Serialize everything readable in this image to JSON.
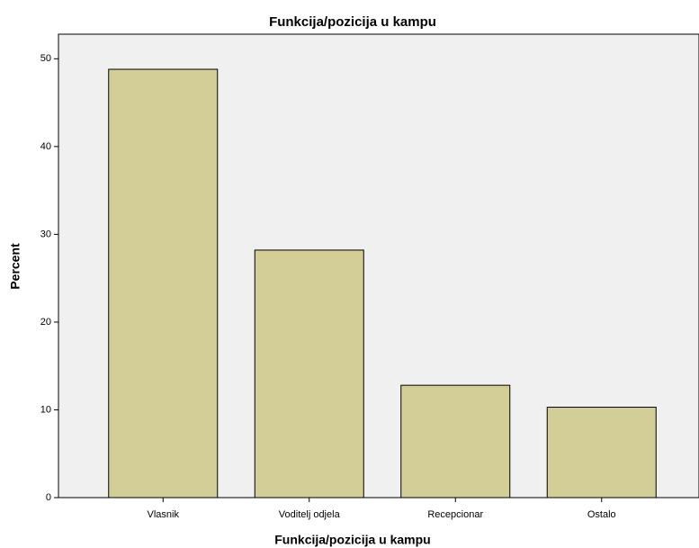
{
  "chart_data": {
    "type": "bar",
    "title": "Funkcija/pozicija u kampu",
    "x_label": "Funkcija/pozicija u kampu",
    "y_label": "Percent",
    "categories": [
      "Vlasnik",
      "Voditelj odjela",
      "Recepcionar",
      "Ostalo"
    ],
    "values": [
      48.8,
      28.2,
      12.8,
      10.3
    ],
    "color": "#d3ce97",
    "ylim": [
      0,
      52.8
    ],
    "yticks": [
      0,
      10,
      20,
      30,
      40,
      50
    ],
    "grid": false
  }
}
